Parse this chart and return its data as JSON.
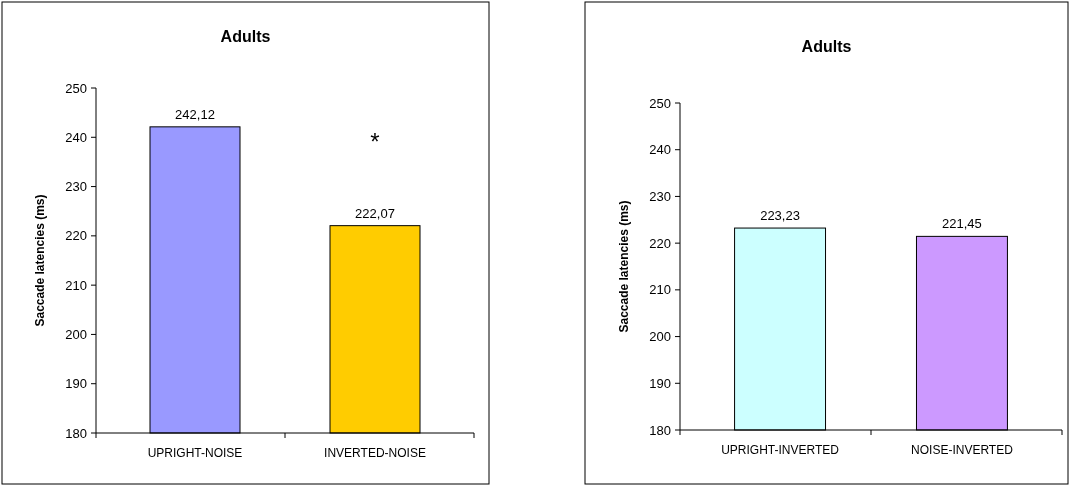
{
  "chart_data": [
    {
      "type": "bar",
      "title": "Adults",
      "ylabel": "Saccade latencies (ms)",
      "categories": [
        "UPRIGHT-NOISE",
        "INVERTED-NOISE"
      ],
      "values": [
        242.12,
        222.07
      ],
      "colors": [
        "#9999ff",
        "#ffcc00"
      ],
      "value_labels": [
        "242,12",
        "222,07"
      ],
      "ylim": [
        180,
        250
      ],
      "yticks": [
        180,
        190,
        200,
        210,
        220,
        230,
        240,
        250
      ],
      "annotations": [
        "*"
      ]
    },
    {
      "type": "bar",
      "title": "Adults",
      "ylabel": "Saccade latencies (ms)",
      "categories": [
        "UPRIGHT-INVERTED",
        "NOISE-INVERTED"
      ],
      "values": [
        223.23,
        221.45
      ],
      "colors": [
        "#ccffff",
        "#cc99ff"
      ],
      "value_labels": [
        "223,23",
        "221,45"
      ],
      "ylim": [
        180,
        250
      ],
      "yticks": [
        180,
        190,
        200,
        210,
        220,
        230,
        240,
        250
      ]
    }
  ]
}
